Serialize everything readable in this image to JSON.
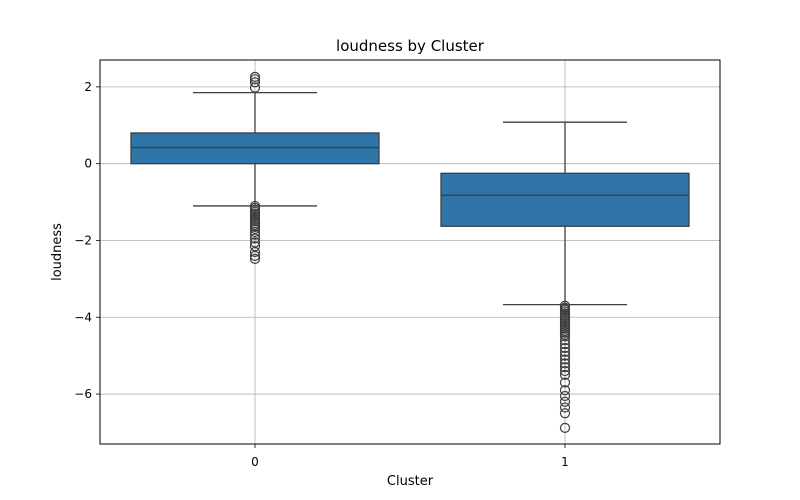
{
  "chart_data": {
    "type": "box",
    "title": "loudness by Cluster",
    "xlabel": "Cluster",
    "ylabel": "loudness",
    "categories": [
      "0",
      "1"
    ],
    "yticks": [
      -6,
      -4,
      -2,
      0,
      2
    ],
    "ylim": [
      -7.3,
      2.7
    ],
    "grid": true,
    "box_color": "#2f75a8",
    "boxes": [
      {
        "category": "0",
        "q1": 0.0,
        "median": 0.42,
        "q3": 0.8,
        "whisker_low": -1.1,
        "whisker_high": 1.85,
        "outliers": [
          2.26,
          2.2,
          2.12,
          1.98,
          -1.1,
          -1.15,
          -1.2,
          -1.25,
          -1.3,
          -1.35,
          -1.4,
          -1.45,
          -1.5,
          -1.55,
          -1.6,
          -1.65,
          -1.7,
          -1.78,
          -1.85,
          -1.95,
          -2.05,
          -2.15,
          -2.3,
          -2.4,
          -2.48
        ]
      },
      {
        "category": "1",
        "q1": -1.63,
        "median": -0.82,
        "q3": -0.25,
        "whisker_low": -3.67,
        "whisker_high": 1.08,
        "outliers": [
          -3.7,
          -3.75,
          -3.8,
          -3.85,
          -3.9,
          -3.95,
          -4.0,
          -4.05,
          -4.1,
          -4.15,
          -4.2,
          -4.25,
          -4.3,
          -4.35,
          -4.4,
          -4.45,
          -4.5,
          -4.6,
          -4.7,
          -4.8,
          -4.9,
          -5.0,
          -5.1,
          -5.2,
          -5.3,
          -5.4,
          -5.5,
          -5.7,
          -5.9,
          -6.05,
          -6.2,
          -6.35,
          -6.5,
          -6.88
        ]
      }
    ]
  }
}
